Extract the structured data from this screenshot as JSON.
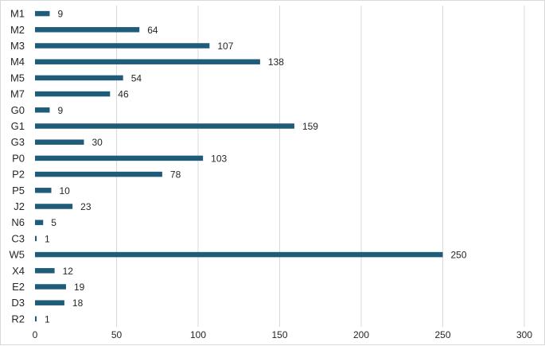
{
  "chart_data": {
    "type": "bar",
    "orientation": "horizontal",
    "categories": [
      "M1",
      "M2",
      "M3",
      "M4",
      "M5",
      "M7",
      "G0",
      "G1",
      "G3",
      "P0",
      "P2",
      "P5",
      "J2",
      "N6",
      "C3",
      "W5",
      "X4",
      "E2",
      "D3",
      "R2"
    ],
    "values": [
      9,
      64,
      107,
      138,
      54,
      46,
      9,
      159,
      30,
      103,
      78,
      10,
      23,
      5,
      1,
      250,
      12,
      19,
      18,
      1
    ],
    "xlim": [
      0,
      300
    ],
    "xticks": [
      0,
      50,
      100,
      150,
      200,
      250,
      300
    ],
    "grid": true,
    "legend": "none",
    "data_labels": true,
    "bar_color": "#1f5c7a",
    "grid_color": "#d9d9d9"
  }
}
